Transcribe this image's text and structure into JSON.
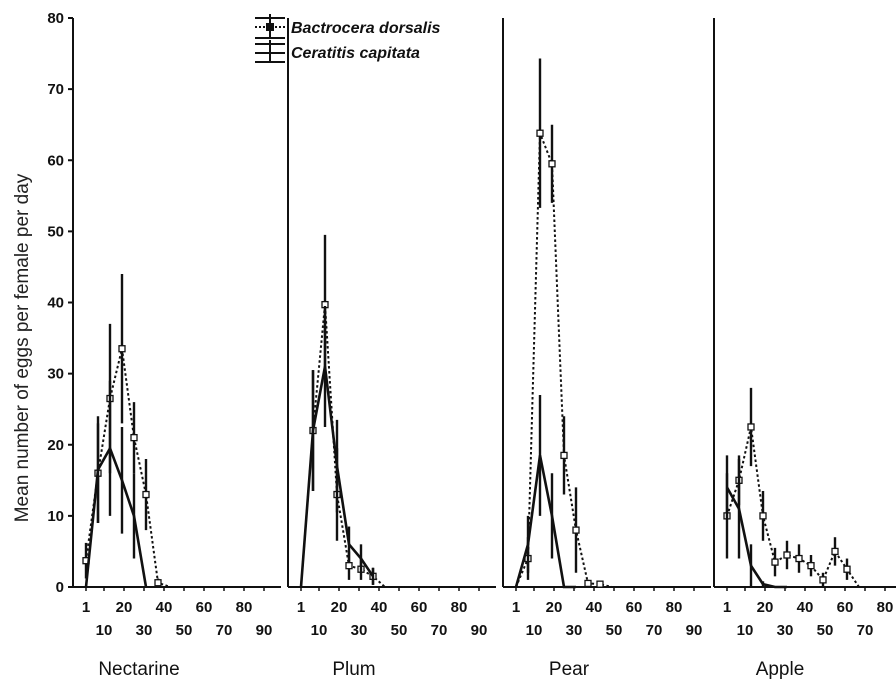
{
  "chart_data": {
    "type": "line",
    "ylabel": "Mean number of eggs per female per day",
    "ylim": [
      0,
      80
    ],
    "yticks": [
      "0",
      "10",
      "20",
      "30",
      "40",
      "50",
      "60",
      "70",
      "80"
    ],
    "xticks_upper": [
      "1",
      "20",
      "40",
      "60",
      "80"
    ],
    "xticks_lower": [
      "10",
      "30",
      "50",
      "70",
      "90"
    ],
    "xlim": [
      -3,
      96
    ],
    "legend": {
      "position": "top-left of second panel",
      "entries": [
        {
          "label": "Bactrocera dorsalis",
          "style": "dotted-square"
        },
        {
          "label": "Ceratitis capitata",
          "style": "solid"
        }
      ]
    },
    "panels": [
      {
        "label": "Nectarine",
        "series": [
          {
            "name": "Bactrocera dorsalis",
            "style": "dotted",
            "x": [
              1,
              7,
              13,
              19,
              25,
              31,
              37,
              43,
              49,
              55,
              61,
              67,
              73,
              79,
              85
            ],
            "y": [
              3.7,
              16,
              26.5,
              33.5,
              21,
              13,
              0.6,
              0,
              0,
              0,
              0,
              0,
              0,
              0,
              0
            ],
            "err": [
              2.5,
              7,
              10.5,
              10.5,
              5,
              5,
              0.6,
              0,
              0,
              0,
              0,
              0,
              0,
              0,
              0
            ]
          },
          {
            "name": "Ceratitis capitata",
            "style": "solid",
            "x": [
              1,
              7,
              13,
              19,
              25,
              31
            ],
            "y": [
              0,
              16.5,
              19.5,
              15,
              10,
              0
            ],
            "err": [
              0,
              7.5,
              9.5,
              7.5,
              6,
              0
            ]
          }
        ]
      },
      {
        "label": "Plum",
        "series": [
          {
            "name": "Bactrocera dorsalis",
            "style": "dotted",
            "x": [
              1,
              7,
              13,
              19,
              25,
              31,
              37,
              43,
              49,
              55,
              61,
              67,
              73,
              79,
              85
            ],
            "y": [
              0,
              22,
              39.7,
              13,
              3,
              2.5,
              1.5,
              0,
              0,
              0,
              0,
              0,
              0,
              0,
              0
            ],
            "err": [
              0,
              8.5,
              9.8,
              6.5,
              2,
              1.5,
              1.2,
              0,
              0,
              0,
              0,
              0,
              0,
              0,
              0
            ]
          },
          {
            "name": "Ceratitis capitata",
            "style": "solid",
            "x": [
              1,
              7,
              13,
              19,
              25,
              31,
              37
            ],
            "y": [
              0,
              22,
              31,
              17,
              6,
              4,
              1.5
            ],
            "err": [
              0,
              8.5,
              8.5,
              6.5,
              2.5,
              2,
              1.2
            ]
          }
        ]
      },
      {
        "label": "Pear",
        "series": [
          {
            "name": "Bactrocera dorsalis",
            "style": "dotted",
            "x": [
              1,
              7,
              13,
              19,
              25,
              31,
              37,
              43,
              49,
              55,
              61,
              67,
              73,
              79,
              85
            ],
            "y": [
              0,
              4,
              63.8,
              59.5,
              18.5,
              8,
              0.5,
              0.4,
              0,
              0,
              0,
              0,
              0,
              0,
              0
            ],
            "err": [
              0,
              3,
              10.5,
              5.5,
              5.5,
              6,
              0.5,
              0.4,
              0,
              0,
              0,
              0,
              0,
              0,
              0
            ]
          },
          {
            "name": "Ceratitis capitata",
            "style": "solid",
            "x": [
              1,
              7,
              13,
              19,
              25,
              31
            ],
            "y": [
              0,
              6,
              18.5,
              10,
              0,
              0
            ],
            "err": [
              0,
              4,
              8.5,
              6,
              0,
              0
            ]
          }
        ]
      },
      {
        "label": "Apple",
        "series": [
          {
            "name": "Bactrocera dorsalis",
            "style": "dotted",
            "x": [
              1,
              7,
              13,
              19,
              25,
              31,
              37,
              43,
              49,
              55,
              61,
              67,
              73,
              79,
              85
            ],
            "y": [
              10,
              15,
              22.5,
              10,
              3.5,
              4.5,
              4,
              3,
              1,
              5,
              2.5,
              0,
              0,
              0,
              0
            ],
            "err": [
              6,
              3.5,
              5.5,
              3.5,
              2,
              2,
              2,
              1.5,
              1,
              2,
              1.5,
              0,
              0,
              0,
              0
            ]
          },
          {
            "name": "Ceratitis capitata",
            "style": "solid",
            "x": [
              1,
              7,
              13,
              19,
              25,
              31
            ],
            "y": [
              14,
              11,
              3,
              0.4,
              0,
              0
            ],
            "err": [
              4.5,
              7,
              3,
              0.4,
              0,
              0
            ]
          }
        ]
      }
    ]
  }
}
